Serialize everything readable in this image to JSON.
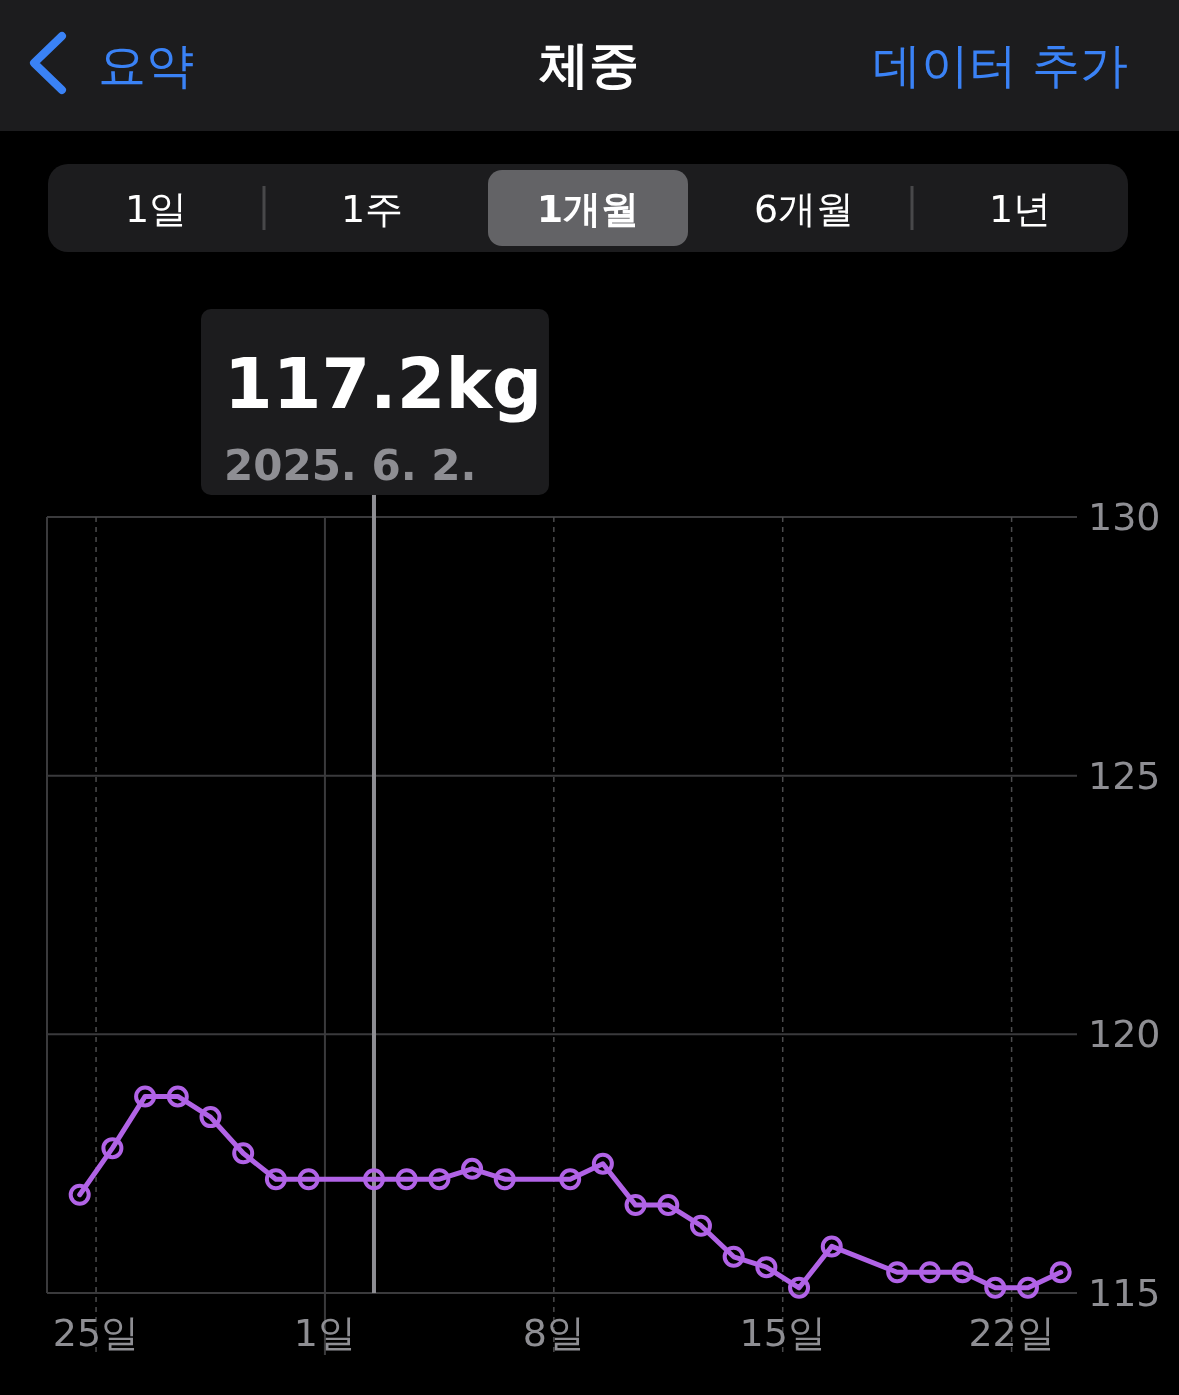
{
  "chart_data": {
    "type": "line",
    "title": "체중",
    "annotations": [
      "요약",
      "데이터 추가",
      "1일",
      "1주",
      "1개월",
      "6개월",
      "1년",
      "117.2kg",
      "2025. 6. 2."
    ],
    "ref_lines": [
      {
        "axis": "x",
        "value": "2025-06-02T12:00",
        "color": "#8e8e93"
      }
    ],
    "series": [
      {
        "color": "#b163e6",
        "x": [
          "2025-05-24T12:00",
          "2025-05-25T12:00",
          "2025-05-26T12:00",
          "2025-05-27T12:00",
          "2025-05-28T12:00",
          "2025-05-29T12:00",
          "2025-05-30T12:00",
          "2025-05-31T12:00",
          "2025-06-02T12:00",
          "2025-06-03T12:00",
          "2025-06-04T12:00",
          "2025-06-05T12:00",
          "2025-06-06T12:00",
          "2025-06-08T12:00",
          "2025-06-09T12:00",
          "2025-06-10T12:00",
          "2025-06-11T12:00",
          "2025-06-12T12:00",
          "2025-06-13T12:00",
          "2025-06-14T12:00",
          "2025-06-15T12:00",
          "2025-06-16T12:00",
          "2025-06-18T12:00",
          "2025-06-19T12:00",
          "2025-06-20T12:00",
          "2025-06-21T12:00",
          "2025-06-22T12:00",
          "2025-06-23T12:00"
        ],
        "values": [
          116.9,
          117.8,
          118.8,
          118.8,
          118.4,
          117.7,
          117.2,
          117.2,
          117.2,
          117.2,
          117.2,
          117.4,
          117.2,
          117.2,
          117.5,
          116.7,
          116.7,
          116.3,
          115.7,
          115.5,
          115.1,
          115.9,
          115.4,
          115.4,
          115.4,
          115.1,
          115.1,
          115.4
        ]
      }
    ],
    "xlim": [
      "2025-05-23T12:00",
      "2025-06-24"
    ],
    "xticks": [
      {
        "value": "2025-05-25",
        "label": "25일"
      },
      {
        "value": "2025-06-01",
        "label": "1일"
      },
      {
        "value": "2025-06-08",
        "label": "8일"
      },
      {
        "value": "2025-06-15",
        "label": "15일"
      },
      {
        "value": "2025-06-22",
        "label": "22일"
      }
    ],
    "ylim": [
      115,
      130
    ],
    "yticks": [
      115,
      120,
      125,
      130
    ],
    "grid": true,
    "marker": "circle",
    "line_style": "solid"
  }
}
